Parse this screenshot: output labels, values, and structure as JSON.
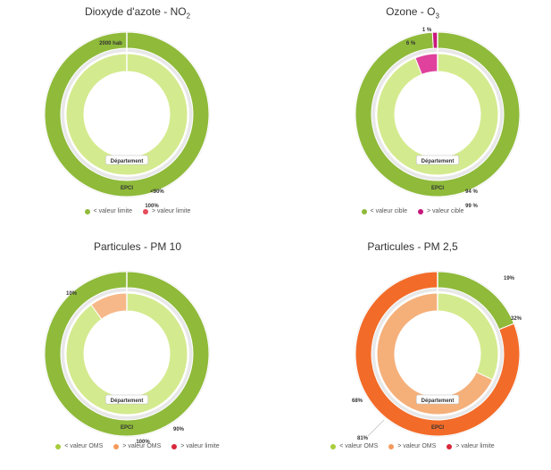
{
  "chart_data": [
    {
      "type": "pie",
      "title": "Dioxyde d'azote - NO",
      "title_subscript": "2",
      "inner_ring_label": "Département",
      "outer_ring_label": "EPCI",
      "series": [
        {
          "ring": "outer",
          "values": [
            100,
            0
          ],
          "labels": [
            "100%",
            ""
          ]
        },
        {
          "ring": "inner",
          "values": [
            100,
            0
          ],
          "labels": [
            "",
            ""
          ]
        }
      ],
      "colors": [
        "#8fba3a",
        "#e64b5a"
      ],
      "inner_colors": [
        "#d4ea8e",
        "#f29aa2"
      ],
      "extra_labels": [
        "2000 hab",
        "<90%"
      ],
      "legend": [
        {
          "label": "< valeur limite",
          "color": "#8fba3a"
        },
        {
          "label": "> valeur limite",
          "color": "#e64b5a"
        }
      ],
      "legend_position": "bottom"
    },
    {
      "type": "pie",
      "title": "Ozone - O",
      "title_subscript": "3",
      "inner_ring_label": "Département",
      "outer_ring_label": "EPCI",
      "series": [
        {
          "ring": "outer",
          "values": [
            99,
            1
          ],
          "labels": [
            "99 %",
            "1 %"
          ]
        },
        {
          "ring": "inner",
          "values": [
            94,
            6
          ],
          "labels": [
            "94 %",
            "6 %"
          ]
        }
      ],
      "colors": [
        "#8fba3a",
        "#c8177c"
      ],
      "inner_colors": [
        "#d4ea8e",
        "#e0419c"
      ],
      "legend": [
        {
          "label": "< valeur cible",
          "color": "#8fba3a"
        },
        {
          "label": "> valeur cible",
          "color": "#c8177c"
        }
      ],
      "legend_position": "bottom"
    },
    {
      "type": "pie",
      "title": "Particules - PM 10",
      "inner_ring_label": "Département",
      "outer_ring_label": "EPCI",
      "series": [
        {
          "ring": "outer",
          "values": [
            100,
            0,
            0
          ],
          "labels": [
            "100%",
            "",
            ""
          ]
        },
        {
          "ring": "inner",
          "values": [
            90,
            10,
            0
          ],
          "labels": [
            "90%",
            "10%",
            ""
          ]
        }
      ],
      "colors": [
        "#8fba3a",
        "#f49a5c",
        "#d8283a"
      ],
      "inner_colors": [
        "#d4ea8e",
        "#f6b888",
        "#e05a66"
      ],
      "legend": [
        {
          "label": "< valeur OMS",
          "color": "#a8cc3c"
        },
        {
          "label": "> valeur OMS",
          "color": "#f49a5c"
        },
        {
          "label": "> valeur limite",
          "color": "#d8283a"
        }
      ],
      "legend_position": "bottom"
    },
    {
      "type": "pie",
      "title": "Particules - PM 2,5",
      "inner_ring_label": "Département",
      "outer_ring_label": "EPCI",
      "series": [
        {
          "ring": "outer",
          "values": [
            19,
            81,
            0
          ],
          "labels": [
            "19%",
            "81%",
            ""
          ]
        },
        {
          "ring": "inner",
          "values": [
            32,
            68,
            0
          ],
          "labels": [
            "32%",
            "68%",
            ""
          ]
        }
      ],
      "colors": [
        "#8fba3a",
        "#f26b28",
        "#d8283a"
      ],
      "inner_colors": [
        "#d4ea8e",
        "#f5b07a",
        "#e05a66"
      ],
      "legend": [
        {
          "label": "< valeur OMS",
          "color": "#a8cc3c"
        },
        {
          "label": "> valeur OMS",
          "color": "#f49a5c"
        },
        {
          "label": "> valeur limite",
          "color": "#d8283a"
        }
      ],
      "legend_position": "bottom"
    }
  ]
}
